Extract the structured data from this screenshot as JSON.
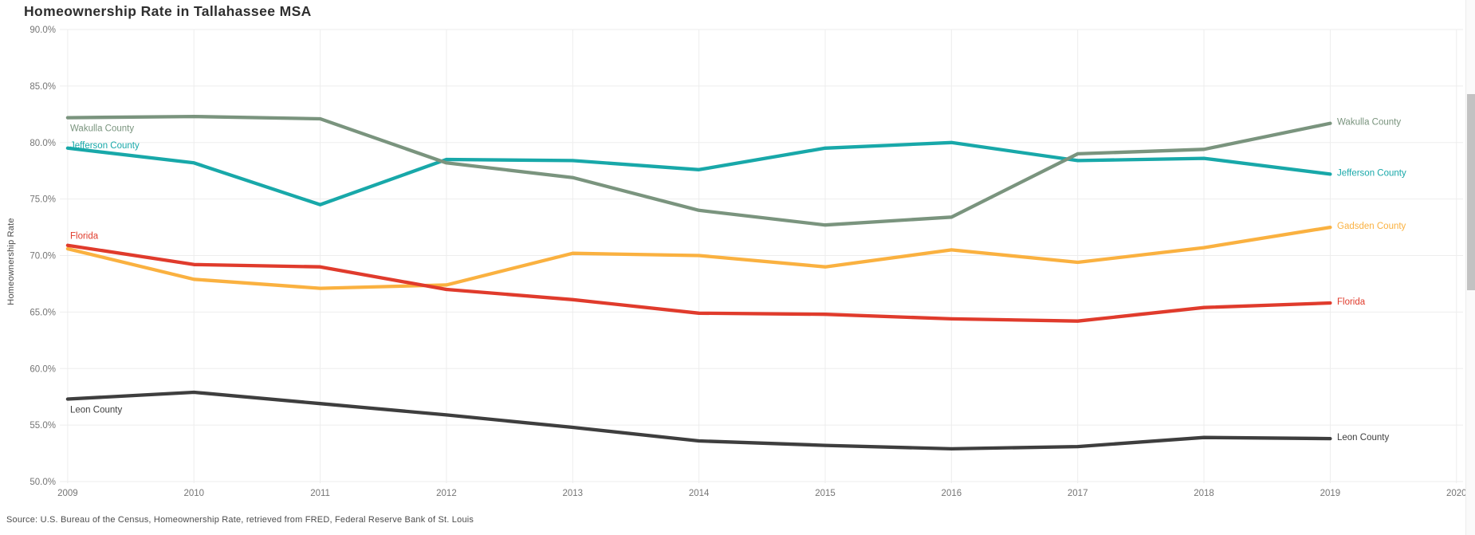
{
  "title": "Homeownership Rate in Tallahassee MSA",
  "source_note": "Source: U.S. Bureau of the Census, Homeownership Rate, retrieved from FRED, Federal Reserve Bank of St. Louis",
  "y_axis": {
    "title": "Homeownership Rate",
    "tick_labels": [
      "90.0%",
      "85.0%",
      "80.0%",
      "75.0%",
      "70.0%",
      "65.0%",
      "60.0%",
      "55.0%",
      "50.0%"
    ]
  },
  "x_axis": {
    "tick_labels": [
      "2009",
      "2010",
      "2011",
      "2012",
      "2013",
      "2014",
      "2015",
      "2016",
      "2017",
      "2018",
      "2019",
      "2020"
    ]
  },
  "chart_data": {
    "type": "line",
    "title": "Homeownership Rate in Tallahassee MSA",
    "xlabel": "",
    "ylabel": "Homeownership Rate",
    "x": [
      2009,
      2010,
      2011,
      2012,
      2013,
      2014,
      2015,
      2016,
      2017,
      2018,
      2019
    ],
    "xlim": [
      2009,
      2020
    ],
    "ylim": [
      50,
      90
    ],
    "grid": true,
    "legend_position": "direct-labels-at-line-ends",
    "series": [
      {
        "name": "Jefferson County",
        "color": "#18A8A9",
        "left_label": true,
        "values": [
          79.5,
          78.2,
          74.5,
          78.5,
          78.4,
          77.6,
          79.5,
          80.0,
          78.4,
          78.6,
          77.2
        ]
      },
      {
        "name": "Wakulla County",
        "color": "#7A947E",
        "left_label": true,
        "values": [
          82.2,
          82.3,
          82.1,
          78.2,
          76.9,
          74.0,
          72.7,
          73.4,
          79.0,
          79.4,
          81.7
        ]
      },
      {
        "name": "Gadsden County",
        "color": "#FAB140",
        "left_label": false,
        "values": [
          70.6,
          67.9,
          67.1,
          67.4,
          70.2,
          70.0,
          69.0,
          70.5,
          69.4,
          70.7,
          72.5
        ]
      },
      {
        "name": "Florida",
        "color": "#E03B2C",
        "left_label": true,
        "values": [
          70.9,
          69.2,
          69.0,
          67.0,
          66.1,
          64.9,
          64.8,
          64.4,
          64.2,
          65.4,
          65.8
        ]
      },
      {
        "name": "Leon County",
        "color": "#3E3E3E",
        "left_label": true,
        "values": [
          57.3,
          57.9,
          56.9,
          55.9,
          54.8,
          53.6,
          53.2,
          52.9,
          53.1,
          53.9,
          53.8
        ]
      }
    ]
  },
  "colors": {
    "grid": "#ededed",
    "tick_text": "#757575",
    "title_text": "#2e2e2e"
  }
}
